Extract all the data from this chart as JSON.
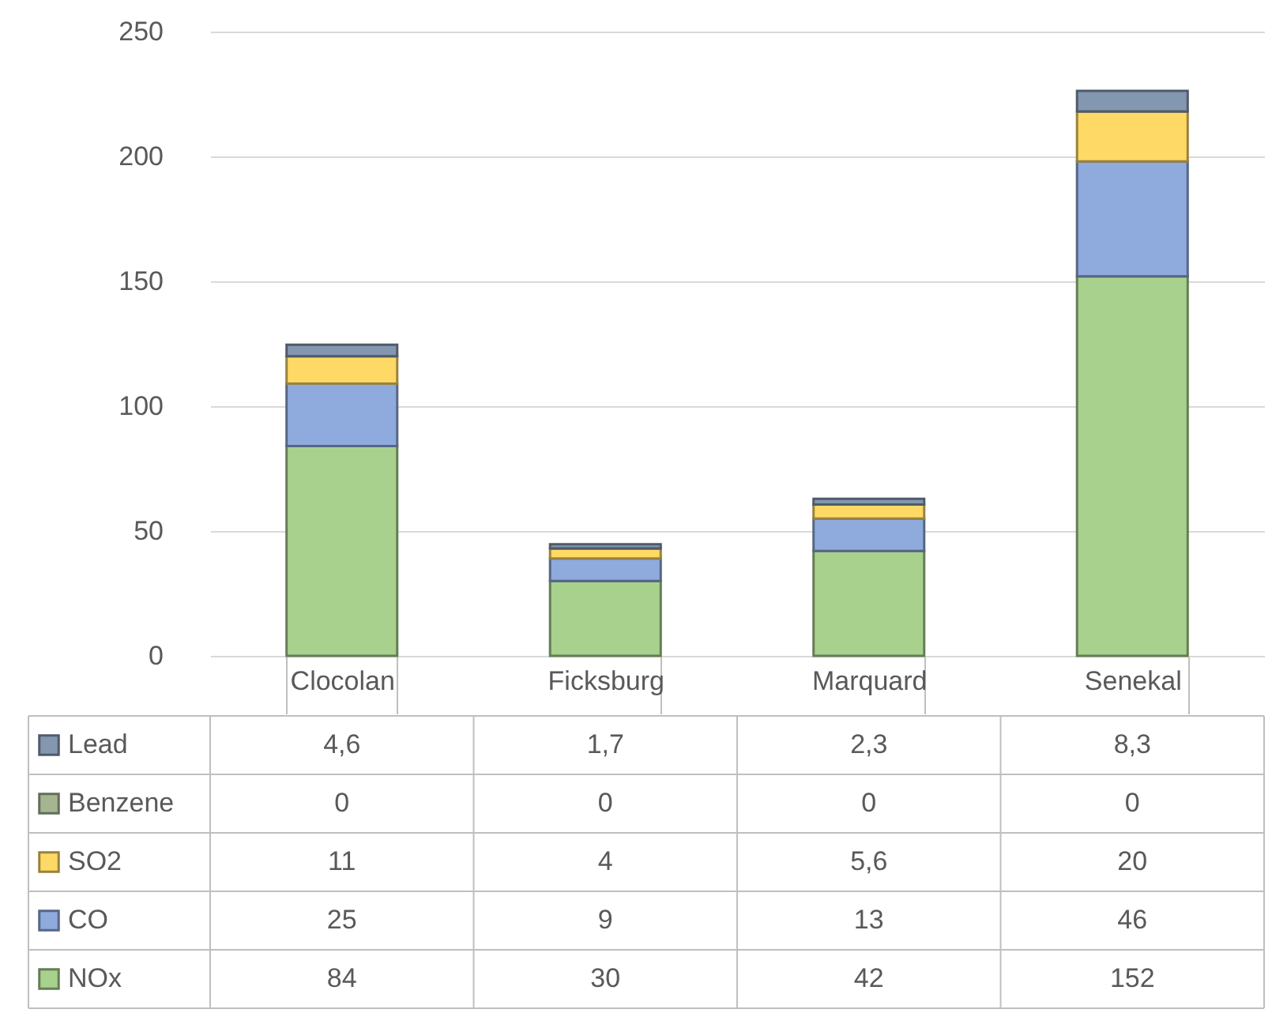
{
  "chart_data": {
    "type": "bar",
    "stacked": true,
    "categories": [
      "Clocolan",
      "Ficksburg",
      "Marquard",
      "Senekal"
    ],
    "series": [
      {
        "name": "NOx",
        "color": "#a9d18e",
        "values": [
          84,
          30,
          42,
          152
        ],
        "value_labels": [
          "84",
          "30",
          "42",
          "152"
        ]
      },
      {
        "name": "CO",
        "color": "#8faadc",
        "values": [
          25,
          9,
          13,
          46
        ],
        "value_labels": [
          "25",
          "9",
          "13",
          "46"
        ]
      },
      {
        "name": "SO2",
        "color": "#ffd966",
        "values": [
          11,
          4,
          5.6,
          20
        ],
        "value_labels": [
          "11",
          "4",
          "5,6",
          "20"
        ]
      },
      {
        "name": "Benzene",
        "color": "#a5b592",
        "values": [
          0,
          0,
          0,
          0
        ],
        "value_labels": [
          "0",
          "0",
          "0",
          "0"
        ]
      },
      {
        "name": "Lead",
        "color": "#8497b0",
        "values": [
          4.6,
          1.7,
          2.3,
          8.3
        ],
        "value_labels": [
          "4,6",
          "1,7",
          "2,3",
          "8,3"
        ]
      }
    ],
    "ylim": [
      0,
      250
    ],
    "yticks": [
      0,
      50,
      100,
      150,
      200,
      250
    ],
    "grid": "y",
    "legend": "bottom left"
  }
}
